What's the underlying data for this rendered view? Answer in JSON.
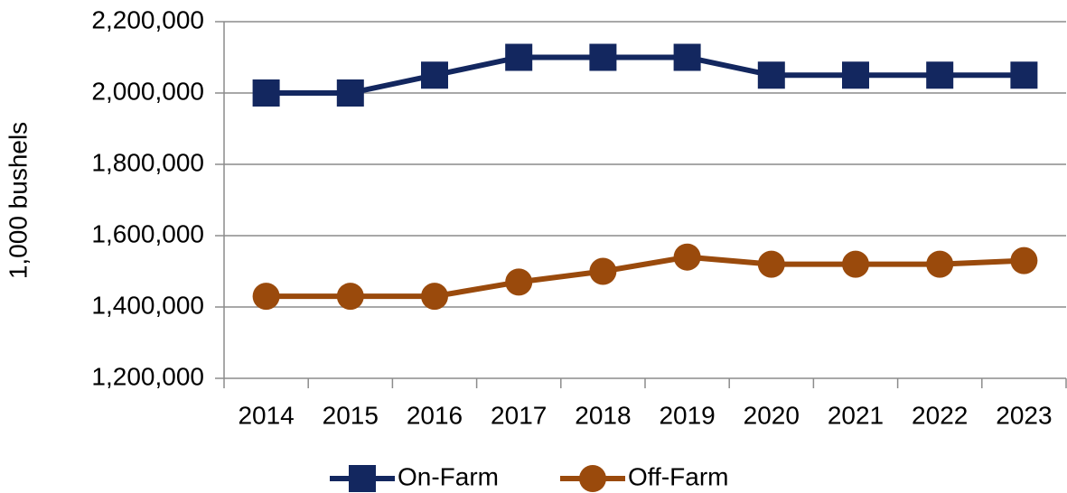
{
  "chart_data": {
    "type": "line",
    "y_label": "1,000 bushels",
    "categories": [
      "2014",
      "2015",
      "2016",
      "2017",
      "2018",
      "2019",
      "2020",
      "2021",
      "2022",
      "2023"
    ],
    "series": [
      {
        "name": "On-Farm",
        "color": "#13275f",
        "marker": "square",
        "values": [
          2000000,
          2000000,
          2050000,
          2100000,
          2100000,
          2100000,
          2050000,
          2050000,
          2050000,
          2050000
        ]
      },
      {
        "name": "Off-Farm",
        "color": "#9a4a0c",
        "marker": "circle",
        "values": [
          1430000,
          1430000,
          1430000,
          1470000,
          1500000,
          1540000,
          1520000,
          1520000,
          1520000,
          1530000
        ]
      }
    ],
    "ylim": [
      1200000,
      2200000
    ],
    "yticks": [
      {
        "value": 1200000,
        "label": "1,200,000"
      },
      {
        "value": 1400000,
        "label": "1,400,000"
      },
      {
        "value": 1600000,
        "label": "1,600,000"
      },
      {
        "value": 1800000,
        "label": "1,800,000"
      },
      {
        "value": 2000000,
        "label": "2,000,000"
      },
      {
        "value": 2200000,
        "label": "2,200,000"
      }
    ],
    "grid": true,
    "legend": "bottom"
  }
}
